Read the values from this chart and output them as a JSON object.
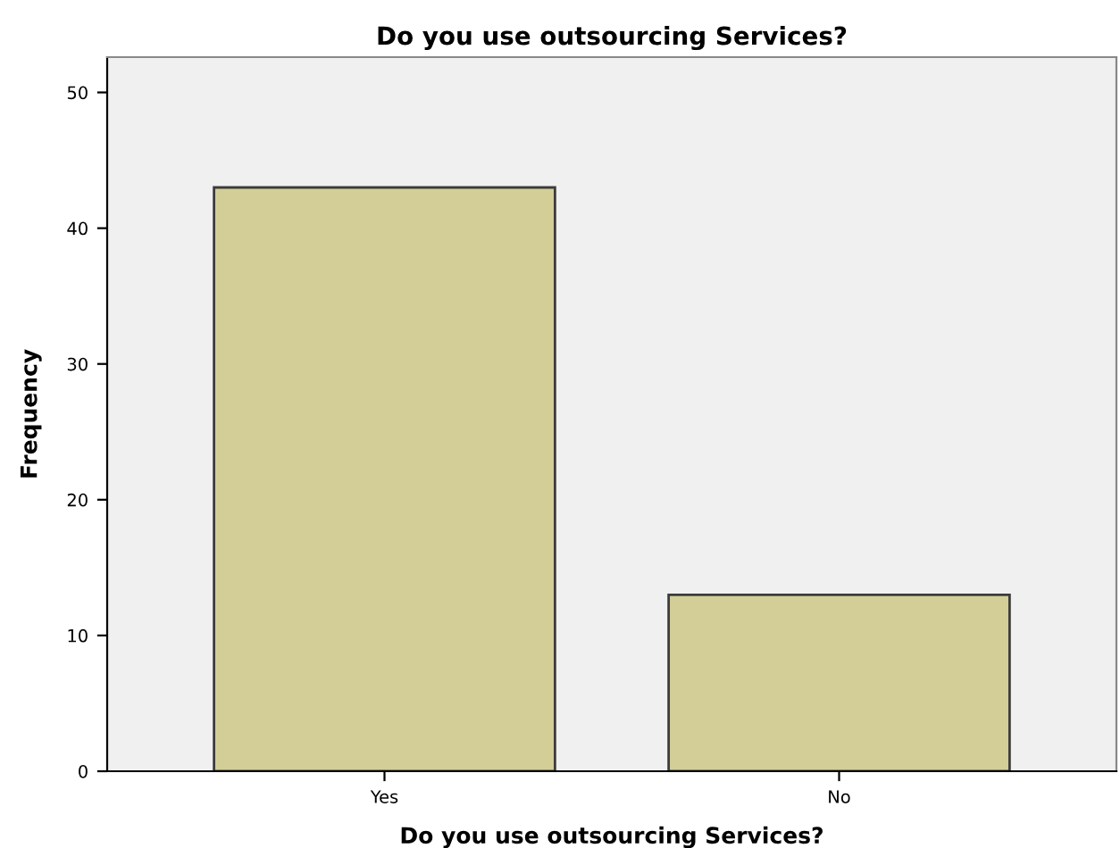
{
  "chart_data": {
    "type": "bar",
    "title": "Do you use outsourcing Services?",
    "xlabel": "Do you use outsourcing Services?",
    "ylabel": "Frequency",
    "categories": [
      "Yes",
      "No"
    ],
    "values": [
      43,
      13
    ],
    "color": "#d3ce97",
    "ylim": [
      0,
      52.6
    ],
    "yticks": [
      0,
      10,
      20,
      30,
      40,
      50
    ],
    "grid": false
  }
}
